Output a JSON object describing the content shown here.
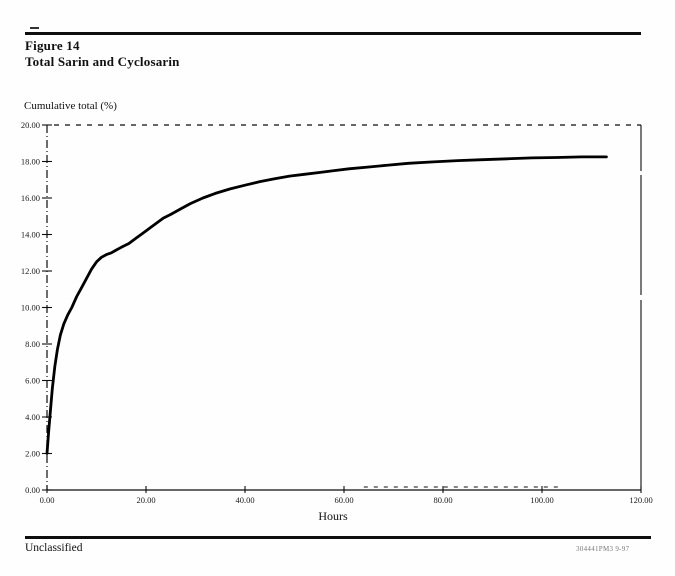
{
  "page": {
    "figure_label": "Figure 14",
    "figure_title": "Total Sarin and Cyclosarin",
    "footer_left": "Unclassified",
    "footer_right": "304441PM3 9-97"
  },
  "chart_data": {
    "type": "line",
    "title": "Figure 14. Total Sarin and Cyclosarin",
    "xlabel": "Hours",
    "ylabel": "Cumulative total (%)",
    "xlim": [
      0,
      120
    ],
    "ylim": [
      0,
      20
    ],
    "x_ticks": [
      0,
      20,
      40,
      60,
      80,
      100,
      120
    ],
    "x_tick_labels": [
      "0.00",
      "20.00",
      "40.00",
      "60.00",
      "80.00",
      "100.00",
      "120.00"
    ],
    "y_ticks": [
      0,
      2,
      4,
      6,
      8,
      10,
      12,
      14,
      16,
      18,
      20
    ],
    "y_tick_labels": [
      "0.00",
      "2.00",
      "4.00",
      "6.00",
      "8.00",
      "10.00",
      "12.00",
      "14.00",
      "16.00",
      "18.00",
      "20.00"
    ],
    "grid": "top boundary dashed at y=20.00; y-axis drawn dash-dot; bottom axis partly dashed between x=64 and x=104",
    "legend_position": "none",
    "line_color": "#000000",
    "background_color": "#fefefe",
    "series": [
      {
        "name": "Total Sarin and Cyclosarin cumulative percent",
        "x": [
          0,
          0.3,
          0.7,
          1.1,
          1.6,
          2.1,
          2.7,
          3.4,
          4.2,
          5,
          6,
          7,
          8,
          9,
          10,
          11,
          12,
          13,
          14,
          15,
          16.5,
          18,
          19.5,
          21,
          22.5,
          23.5,
          25,
          27,
          29,
          31.5,
          34,
          37,
          40,
          43,
          46,
          49,
          52,
          55,
          58,
          61,
          65,
          69,
          73,
          78,
          83,
          88,
          93,
          98,
          103,
          108,
          113
        ],
        "y": [
          2.0,
          3.1,
          4.4,
          5.6,
          6.8,
          7.7,
          8.5,
          9.1,
          9.6,
          10.0,
          10.6,
          11.1,
          11.6,
          12.1,
          12.5,
          12.75,
          12.9,
          13.0,
          13.15,
          13.3,
          13.5,
          13.8,
          14.1,
          14.4,
          14.7,
          14.9,
          15.1,
          15.4,
          15.7,
          16.0,
          16.25,
          16.5,
          16.7,
          16.9,
          17.05,
          17.2,
          17.3,
          17.4,
          17.5,
          17.6,
          17.7,
          17.8,
          17.9,
          17.98,
          18.05,
          18.1,
          18.15,
          18.2,
          18.22,
          18.25,
          18.25
        ]
      }
    ]
  }
}
